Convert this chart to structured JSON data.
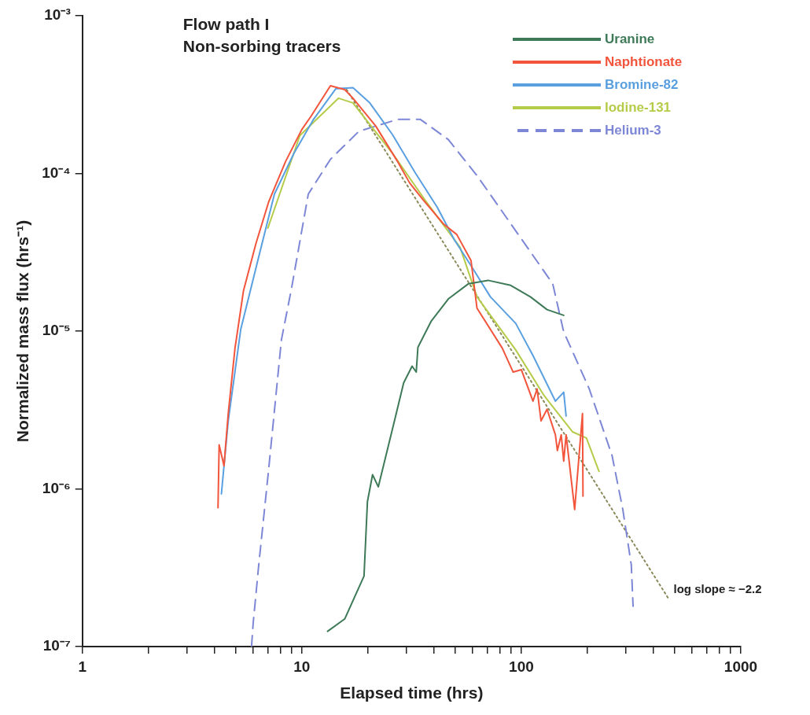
{
  "chart_data": {
    "type": "line",
    "title": "Flow path I",
    "subtitle": "Non-sorbing tracers",
    "xlabel": "Elapsed time (hrs)",
    "ylabel": "Normalized mass flux (hrs⁻¹)",
    "log": "xy",
    "grid": false,
    "legend": "top right",
    "marker": "none",
    "xlim": [
      1,
      1000
    ],
    "ylim": [
      1e-07,
      0.001
    ],
    "xticks": [
      1,
      {
        "value": 2,
        "label": null
      },
      {
        "value": 3,
        "label": null
      },
      {
        "value": 4,
        "label": null
      },
      {
        "value": 5,
        "label": null
      },
      {
        "value": 6,
        "label": null
      },
      {
        "value": 7,
        "label": null
      },
      {
        "value": 8,
        "label": null
      },
      {
        "value": 9,
        "label": null
      },
      10,
      {
        "value": 20,
        "label": null
      },
      {
        "value": 30,
        "label": null
      },
      {
        "value": 40,
        "label": null
      },
      {
        "value": 50,
        "label": null
      },
      {
        "value": 60,
        "label": null
      },
      {
        "value": 70,
        "label": null
      },
      {
        "value": 80,
        "label": null
      },
      {
        "value": 90,
        "label": null
      },
      100,
      {
        "value": 200,
        "label": null
      },
      {
        "value": 300,
        "label": null
      },
      {
        "value": 400,
        "label": null
      },
      {
        "value": 500,
        "label": null
      },
      {
        "value": 600,
        "label": null
      },
      {
        "value": 700,
        "label": null
      },
      {
        "value": 800,
        "label": null
      },
      {
        "value": 900,
        "label": null
      },
      1000
    ],
    "yticks": [
      {
        "value": 1e-07,
        "label": "10⁻⁷"
      },
      {
        "value": 1e-06,
        "label": "10⁻⁶"
      },
      {
        "value": 1e-05,
        "label": "10⁻⁵"
      },
      {
        "value": 0.0001,
        "label": "10⁻⁴"
      },
      {
        "value": 0.001,
        "label": "10⁻³"
      }
    ],
    "annotations": [
      "log slope ≈ −2.2"
    ],
    "series": [
      {
        "name": "Uranine",
        "color": "#3f7a58",
        "x": [
          13.1,
          15.7,
          19.2,
          19.9,
          21.0,
          22.3,
          26.6,
          29.1,
          31.8,
          33.2,
          33.8,
          38.9,
          46.5,
          57.5,
          70.5,
          89.5,
          110,
          131,
          156
        ],
        "values": [
          1.25e-07,
          1.5e-07,
          2.8e-07,
          8.3e-07,
          1.23e-06,
          1.03e-06,
          2.8e-06,
          4.7e-06,
          6e-06,
          5.5e-06,
          7.9e-06,
          1.16e-05,
          1.6e-05,
          2e-05,
          2.1e-05,
          1.95e-05,
          1.65e-05,
          1.37e-05,
          1.26e-05
        ]
      },
      {
        "name": "Naphtionate",
        "color": "#f2553c",
        "x": [
          4.15,
          4.2,
          4.42,
          4.62,
          4.96,
          5.42,
          6.18,
          7.06,
          8.43,
          10,
          11,
          13.5,
          15.7,
          17.1,
          21.7,
          27.3,
          31,
          35.7,
          44.1,
          50.8,
          59,
          62.8,
          81.9,
          91.8,
          100,
          113,
          118,
          123,
          131,
          143,
          146,
          152,
          156,
          160,
          175,
          190,
          191
        ],
        "values": [
          7.6e-07,
          1.9e-06,
          1.4e-06,
          3e-06,
          7.8e-06,
          1.8e-05,
          3.6e-05,
          6.6e-05,
          0.000119,
          0.00019,
          0.00023,
          0.00036,
          0.00034,
          0.0003,
          0.0002,
          0.000119,
          8.7e-05,
          6.8e-05,
          4.8e-05,
          4.1e-05,
          2.8e-05,
          1.4e-05,
          7.8e-06,
          5.5e-06,
          5.7e-06,
          3.6e-06,
          4.3e-06,
          2.7e-06,
          3.2e-06,
          2.2e-06,
          1.75e-06,
          2.2e-06,
          1.5e-06,
          2.2e-06,
          7.4e-07,
          3e-06,
          9e-07
        ]
      },
      {
        "name": "Bromine-82",
        "color": "#5aa0e0",
        "x": [
          4.3,
          4.62,
          5.27,
          6.3,
          7.5,
          9.2,
          11.3,
          14.3,
          17.1,
          20.4,
          25.9,
          32.7,
          41.4,
          49.5,
          59,
          72.3,
          94.3,
          113,
          143,
          156,
          160
        ],
        "values": [
          9.3e-07,
          2.7e-06,
          1.03e-05,
          2.8e-05,
          7.4e-05,
          0.000134,
          0.00022,
          0.000345,
          0.00035,
          0.00028,
          0.000176,
          0.000102,
          6.1e-05,
          3.8e-05,
          2.6e-05,
          1.65e-05,
          1.12e-05,
          7e-06,
          3.6e-06,
          4.1e-06,
          2.9e-06
        ]
      },
      {
        "name": "Iodine-131",
        "color": "#b5cc4a",
        "x": [
          7.0,
          9.8,
          14.7,
          17.1,
          25.9,
          36.9,
          52.6,
          62.8,
          94.3,
          127,
          171,
          198,
          226
        ],
        "values": [
          4.5e-05,
          0.000174,
          0.0003,
          0.00028,
          0.000134,
          6.6e-05,
          3.4e-05,
          1.65e-05,
          7.6e-06,
          3.9e-06,
          2.3e-06,
          2.1e-06,
          1.29e-06
        ]
      },
      {
        "name": "Helium-3",
        "color": "#7d87d6",
        "line_style": "dashed",
        "x": [
          5.9,
          6.0,
          6.35,
          7.06,
          8.07,
          8.97,
          10.7,
          13.5,
          18.2,
          27.3,
          34.7,
          46.5,
          62.8,
          89.5,
          139,
          156,
          204,
          259,
          290,
          317,
          323
        ],
        "values": [
          1e-07,
          1.4e-07,
          3.2e-07,
          1.33e-06,
          8.8e-06,
          1.86e-05,
          7.4e-05,
          0.000123,
          0.000185,
          0.00022,
          0.00022,
          0.000164,
          9.7e-05,
          4.8e-05,
          2e-05,
          9.9e-06,
          4.3e-06,
          1.63e-06,
          7.4e-07,
          3.3e-07,
          1.8e-07
        ]
      },
      {
        "type": "line",
        "color": "#8a8a5a",
        "line_style": "dotted",
        "x": [
          16,
          470
        ],
        "values": [
          0.00034,
          2e-07
        ]
      }
    ]
  }
}
